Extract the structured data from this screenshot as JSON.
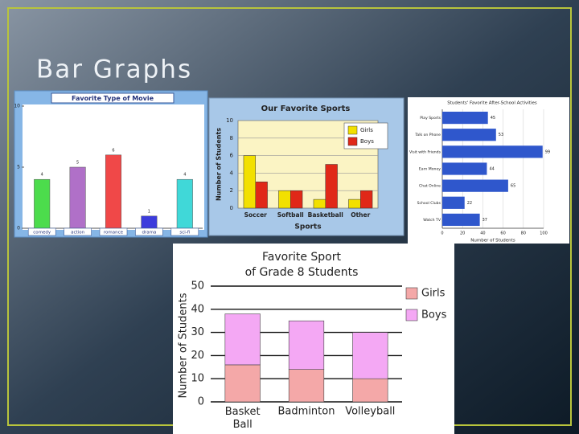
{
  "slide": {
    "title": "Bar Graphs"
  },
  "chart_data": [
    {
      "type": "bar",
      "title": "Favorite Type of Movie",
      "categories": [
        "comedy",
        "action",
        "romance",
        "drama",
        "sci-fi"
      ],
      "values": [
        4,
        5,
        6,
        1,
        4
      ],
      "colors": [
        "#4cdc4c",
        "#b070c8",
        "#f04848",
        "#3c3cdc",
        "#40d8d8"
      ],
      "ylim": [
        0,
        10
      ],
      "yticks": [
        0,
        5,
        10
      ]
    },
    {
      "type": "grouped_bar",
      "title": "Our Favorite Sports",
      "categories": [
        "Soccer",
        "Softball",
        "Basketball",
        "Other"
      ],
      "series": [
        {
          "name": "Girls",
          "color": "#f2e000",
          "values": [
            6,
            2,
            1,
            1
          ]
        },
        {
          "name": "Boys",
          "color": "#e02818",
          "values": [
            3,
            2,
            5,
            2
          ]
        }
      ],
      "ylim": [
        0,
        10
      ],
      "yticks": [
        0,
        2,
        4,
        6,
        8,
        10
      ],
      "grid": true,
      "ylabel": "Number of Students",
      "xlabel": "Sports"
    },
    {
      "type": "horizontal_bar",
      "title": "Students' Favorite After-School Activities",
      "categories": [
        "Play Sports",
        "Talk on Phone",
        "Visit with Friends",
        "Earn Money",
        "Chat Online",
        "School Clubs",
        "Watch TV"
      ],
      "values": [
        45,
        53,
        99,
        44,
        65,
        22,
        37
      ],
      "color": "#2f57cc",
      "xlim": [
        0,
        100
      ],
      "xticks": [
        0,
        20,
        40,
        60,
        80,
        100
      ],
      "grid": true,
      "xlabel": "Number of Students"
    },
    {
      "type": "stacked_bar",
      "title": [
        "Favorite Sport",
        "of Grade 8 Students"
      ],
      "categories": [
        "Basket Ball",
        "Badminton",
        "Volleyball"
      ],
      "series": [
        {
          "name": "Girls",
          "color": "#f4a8a8",
          "values": [
            16,
            14,
            10
          ]
        },
        {
          "name": "Boys",
          "color": "#f4a8f4",
          "values": [
            22,
            21,
            20
          ]
        }
      ],
      "ylim": [
        0,
        50
      ],
      "yticks": [
        0,
        10,
        20,
        30,
        40,
        50
      ],
      "grid": true,
      "ylabel": "Number of Students"
    }
  ]
}
